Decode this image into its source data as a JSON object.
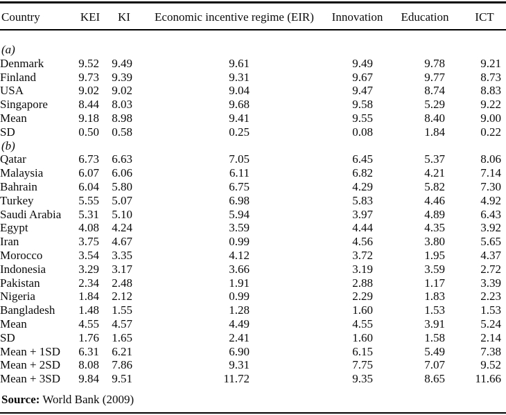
{
  "table": {
    "columns": [
      "Country",
      "KEI",
      "KI",
      "Economic incentive regime (EIR)",
      "Innovation",
      "Education",
      "ICT"
    ],
    "sections": [
      {
        "label": "(a)",
        "rows": [
          {
            "country": "Denmark",
            "values": [
              "9.52",
              "9.49",
              "9.61",
              "9.49",
              "9.78",
              "9.21"
            ]
          },
          {
            "country": "Finland",
            "values": [
              "9.73",
              "9.39",
              "9.31",
              "9.67",
              "9.77",
              "8.73"
            ]
          },
          {
            "country": "USA",
            "values": [
              "9.02",
              "9.02",
              "9.04",
              "9.47",
              "8.74",
              "8.83"
            ]
          },
          {
            "country": "Singapore",
            "values": [
              "8.44",
              "8.03",
              "9.68",
              "9.58",
              "5.29",
              "9.22"
            ]
          },
          {
            "country": "Mean",
            "values": [
              "9.18",
              "8.98",
              "9.41",
              "9.55",
              "8.40",
              "9.00"
            ]
          },
          {
            "country": "SD",
            "values": [
              "0.50",
              "0.58",
              "0.25",
              "0.08",
              "1.84",
              "0.22"
            ]
          }
        ]
      },
      {
        "label": "(b)",
        "rows": [
          {
            "country": "Qatar",
            "values": [
              "6.73",
              "6.63",
              "7.05",
              "6.45",
              "5.37",
              "8.06"
            ]
          },
          {
            "country": "Malaysia",
            "values": [
              "6.07",
              "6.06",
              "6.11",
              "6.82",
              "4.21",
              "7.14"
            ]
          },
          {
            "country": "Bahrain",
            "values": [
              "6.04",
              "5.80",
              "6.75",
              "4.29",
              "5.82",
              "7.30"
            ]
          },
          {
            "country": "Turkey",
            "values": [
              "5.55",
              "5.07",
              "6.98",
              "5.83",
              "4.46",
              "4.92"
            ]
          },
          {
            "country": "Saudi Arabia",
            "values": [
              "5.31",
              "5.10",
              "5.94",
              "3.97",
              "4.89",
              "6.43"
            ]
          },
          {
            "country": "Egypt",
            "values": [
              "4.08",
              "4.24",
              "3.59",
              "4.44",
              "4.35",
              "3.92"
            ]
          },
          {
            "country": "Iran",
            "values": [
              "3.75",
              "4.67",
              "0.99",
              "4.56",
              "3.80",
              "5.65"
            ]
          },
          {
            "country": "Morocco",
            "values": [
              "3.54",
              "3.35",
              "4.12",
              "3.72",
              "1.95",
              "4.37"
            ]
          },
          {
            "country": "Indonesia",
            "values": [
              "3.29",
              "3.17",
              "3.66",
              "3.19",
              "3.59",
              "2.72"
            ]
          },
          {
            "country": "Pakistan",
            "values": [
              "2.34",
              "2.48",
              "1.91",
              "2.88",
              "1.17",
              "3.39"
            ]
          },
          {
            "country": "Nigeria",
            "values": [
              "1.84",
              "2.12",
              "0.99",
              "2.29",
              "1.83",
              "2.23"
            ]
          },
          {
            "country": "Bangladesh",
            "values": [
              "1.48",
              "1.55",
              "1.28",
              "1.60",
              "1.53",
              "1.53"
            ]
          },
          {
            "country": "Mean",
            "values": [
              "4.55",
              "4.57",
              "4.49",
              "4.55",
              "3.91",
              "5.24"
            ]
          },
          {
            "country": "SD",
            "values": [
              "1.76",
              "1.65",
              "2.41",
              "1.60",
              "1.58",
              "2.14"
            ]
          },
          {
            "country": "Mean + 1SD",
            "values": [
              "6.31",
              "6.21",
              "6.90",
              "6.15",
              "5.49",
              "7.38"
            ]
          },
          {
            "country": "Mean + 2SD",
            "values": [
              "8.08",
              "7.86",
              "9.31",
              "7.75",
              "7.07",
              "9.52"
            ]
          },
          {
            "country": "Mean + 3SD",
            "values": [
              "9.84",
              "9.51",
              "11.72",
              "9.35",
              "8.65",
              "11.66"
            ]
          }
        ]
      }
    ]
  },
  "source": {
    "label": "Source:",
    "text": " World Bank (2009)"
  }
}
